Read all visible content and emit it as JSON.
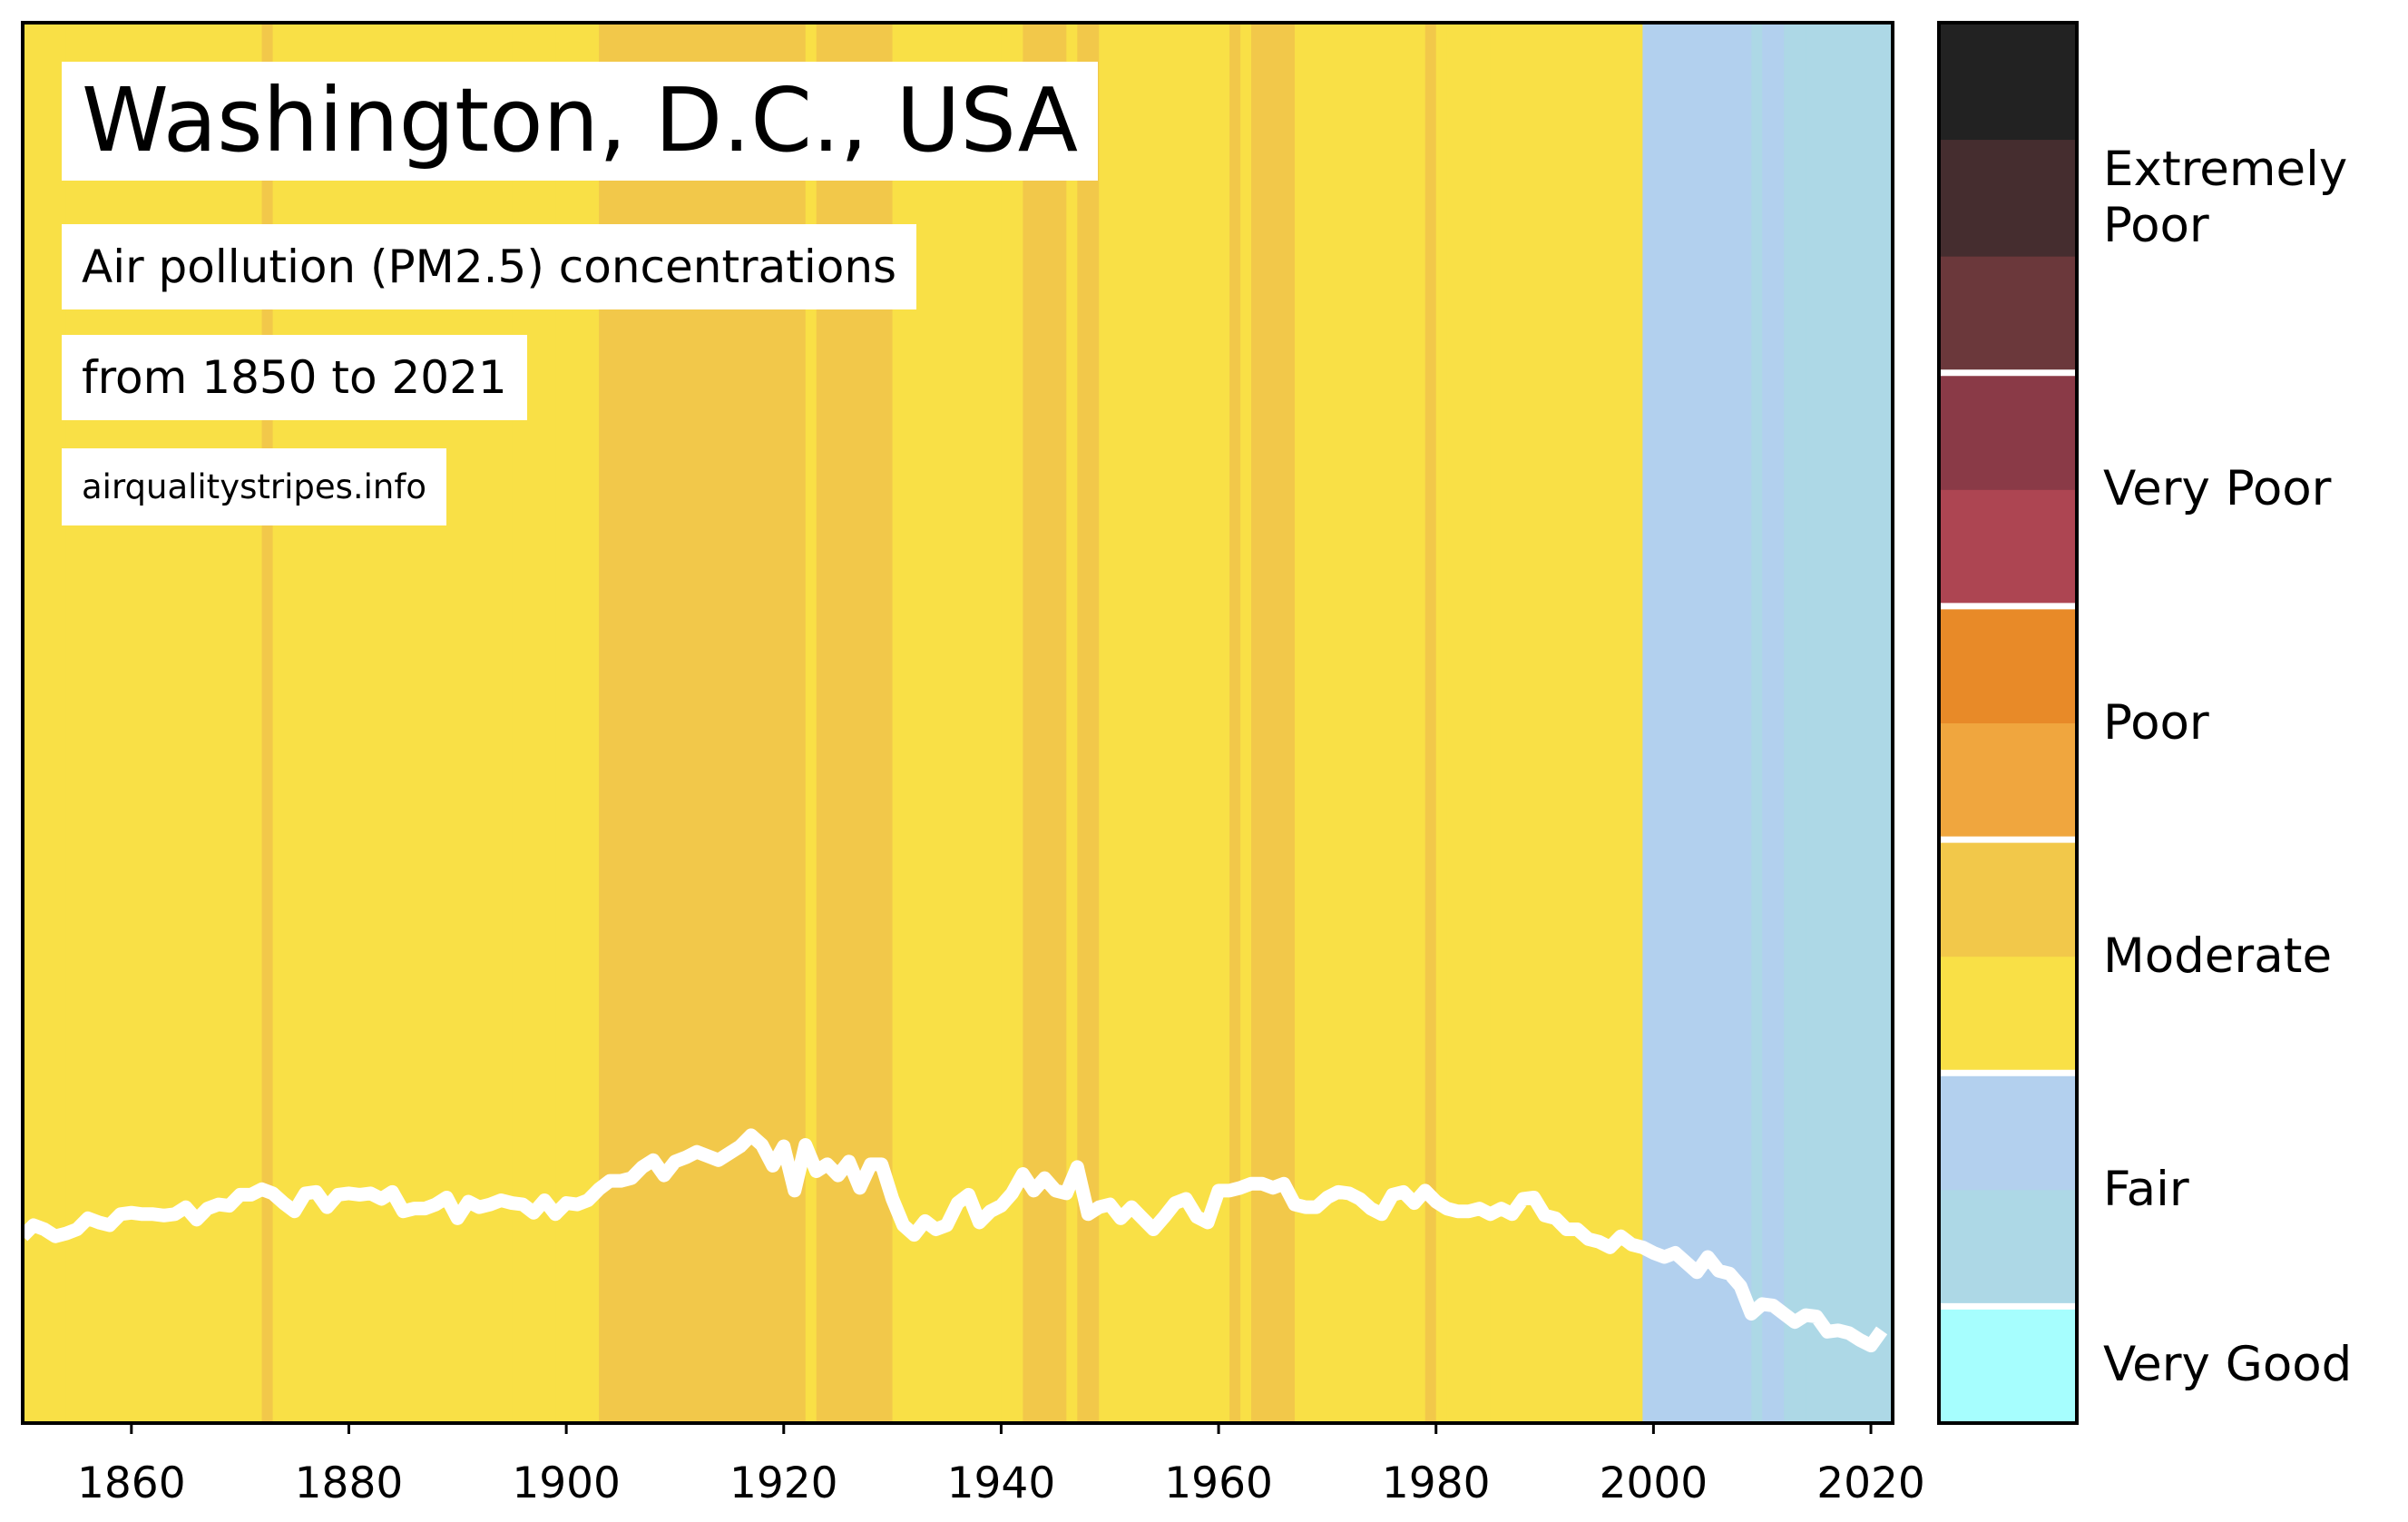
{
  "chart_data": {
    "type": "stripes",
    "title": "Washington, D.C., USA",
    "subtitle": [
      "Air pollution (PM2.5) concentrations",
      "from 1850 to 2021"
    ],
    "source": "airqualitystripes.info",
    "x": [
      1850,
      1851,
      1852,
      1853,
      1854,
      1855,
      1856,
      1857,
      1858,
      1859,
      1860,
      1861,
      1862,
      1863,
      1864,
      1865,
      1866,
      1867,
      1868,
      1869,
      1870,
      1871,
      1872,
      1873,
      1874,
      1875,
      1876,
      1877,
      1878,
      1879,
      1880,
      1881,
      1882,
      1883,
      1884,
      1885,
      1886,
      1887,
      1888,
      1889,
      1890,
      1891,
      1892,
      1893,
      1894,
      1895,
      1896,
      1897,
      1898,
      1899,
      1900,
      1901,
      1902,
      1903,
      1904,
      1905,
      1906,
      1907,
      1908,
      1909,
      1910,
      1911,
      1912,
      1913,
      1914,
      1915,
      1916,
      1917,
      1918,
      1919,
      1920,
      1921,
      1922,
      1923,
      1924,
      1925,
      1926,
      1927,
      1928,
      1929,
      1930,
      1931,
      1932,
      1933,
      1934,
      1935,
      1936,
      1937,
      1938,
      1939,
      1940,
      1941,
      1942,
      1943,
      1944,
      1945,
      1946,
      1947,
      1948,
      1949,
      1950,
      1951,
      1952,
      1953,
      1954,
      1955,
      1956,
      1957,
      1958,
      1959,
      1960,
      1961,
      1962,
      1963,
      1964,
      1965,
      1966,
      1967,
      1968,
      1969,
      1970,
      1971,
      1972,
      1973,
      1974,
      1975,
      1976,
      1977,
      1978,
      1979,
      1980,
      1981,
      1982,
      1983,
      1984,
      1985,
      1986,
      1987,
      1988,
      1989,
      1990,
      1991,
      1992,
      1993,
      1994,
      1995,
      1996,
      1997,
      1998,
      1999,
      2000,
      2001,
      2002,
      2003,
      2004,
      2005,
      2006,
      2007,
      2008,
      2009,
      2010,
      2011,
      2012,
      2013,
      2014,
      2015,
      2016,
      2017,
      2018,
      2019,
      2020,
      2021
    ],
    "values": [
      15.6,
      16.4,
      16.1,
      15.6,
      15.8,
      16.1,
      16.9,
      16.6,
      16.4,
      17.2,
      17.3,
      17.2,
      17.2,
      17.1,
      17.2,
      17.7,
      16.8,
      17.6,
      17.9,
      17.8,
      18.6,
      18.6,
      19.0,
      18.7,
      18.0,
      17.4,
      18.7,
      18.8,
      17.7,
      18.6,
      18.7,
      18.6,
      18.7,
      18.3,
      18.8,
      17.4,
      17.6,
      17.6,
      17.9,
      18.4,
      16.9,
      18.1,
      17.7,
      17.9,
      18.2,
      18.0,
      17.9,
      17.3,
      18.2,
      17.2,
      18.0,
      17.9,
      18.2,
      19.0,
      19.6,
      19.6,
      19.8,
      20.6,
      21.1,
      20.0,
      21.0,
      21.3,
      21.7,
      21.4,
      21.1,
      21.6,
      22.1,
      22.9,
      22.2,
      20.7,
      22.1,
      18.9,
      22.2,
      20.3,
      20.8,
      20.0,
      21.0,
      19.1,
      20.8,
      20.8,
      18.3,
      16.4,
      15.7,
      16.7,
      16.1,
      16.4,
      18.0,
      18.6,
      16.6,
      17.4,
      17.8,
      18.7,
      20.1,
      18.9,
      19.8,
      18.9,
      18.7,
      20.6,
      17.2,
      17.7,
      17.9,
      16.9,
      17.7,
      16.9,
      16.1,
      17.0,
      18.0,
      18.3,
      17.0,
      16.6,
      18.9,
      18.9,
      19.1,
      19.4,
      19.4,
      19.1,
      19.4,
      17.9,
      17.7,
      17.7,
      18.4,
      18.8,
      18.7,
      18.3,
      17.6,
      17.2,
      18.6,
      18.8,
      18.0,
      18.9,
      18.1,
      17.6,
      17.4,
      17.4,
      17.6,
      17.2,
      17.6,
      17.2,
      18.3,
      18.4,
      17.1,
      16.9,
      16.1,
      16.1,
      15.4,
      15.2,
      14.8,
      15.6,
      15.0,
      14.8,
      14.4,
      14.1,
      14.4,
      13.7,
      13.0,
      14.1,
      13.1,
      12.9,
      12.0,
      10.0,
      10.7,
      10.6,
      10.0,
      9.4,
      9.9,
      9.8,
      8.7,
      8.8,
      8.6,
      8.1,
      7.7,
      8.8
    ],
    "colors": [
      "#f9e046",
      "#f9e046",
      "#f9e046",
      "#f9e046",
      "#f9e046",
      "#f9e046",
      "#f9e046",
      "#f9e046",
      "#f9e046",
      "#f9e046",
      "#f9e046",
      "#f9e046",
      "#f9e046",
      "#f9e046",
      "#f9e046",
      "#f9e046",
      "#f9e046",
      "#f9e046",
      "#f9e046",
      "#f9e046",
      "#f9e046",
      "#f9e046",
      "#f2c84a",
      "#f9e046",
      "#f9e046",
      "#f9e046",
      "#f9e046",
      "#f9e046",
      "#f9e046",
      "#f9e046",
      "#f9e046",
      "#f9e046",
      "#f9e046",
      "#f9e046",
      "#f9e046",
      "#f9e046",
      "#f9e046",
      "#f9e046",
      "#f9e046",
      "#f9e046",
      "#f9e046",
      "#f9e046",
      "#f9e046",
      "#f9e046",
      "#f9e046",
      "#f9e046",
      "#f9e046",
      "#f9e046",
      "#f9e046",
      "#f9e046",
      "#f9e046",
      "#f9e046",
      "#f9e046",
      "#f2c84a",
      "#f2c84a",
      "#f2c84a",
      "#f2c84a",
      "#f2c84a",
      "#f2c84a",
      "#f2c84a",
      "#f2c84a",
      "#f2c84a",
      "#f2c84a",
      "#f2c84a",
      "#f2c84a",
      "#f2c84a",
      "#f2c84a",
      "#f2c84a",
      "#f2c84a",
      "#f2c84a",
      "#f2c84a",
      "#f2c84a",
      "#f9e046",
      "#f2c84a",
      "#f2c84a",
      "#f2c84a",
      "#f2c84a",
      "#f2c84a",
      "#f2c84a",
      "#f2c84a",
      "#f9e046",
      "#f9e046",
      "#f9e046",
      "#f9e046",
      "#f9e046",
      "#f9e046",
      "#f9e046",
      "#f9e046",
      "#f9e046",
      "#f9e046",
      "#f9e046",
      "#f9e046",
      "#f2c84a",
      "#f2c84a",
      "#f2c84a",
      "#f2c84a",
      "#f9e046",
      "#f2c84a",
      "#f2c84a",
      "#f9e046",
      "#f9e046",
      "#f9e046",
      "#f9e046",
      "#f9e046",
      "#f9e046",
      "#f9e046",
      "#f9e046",
      "#f9e046",
      "#f9e046",
      "#f9e046",
      "#f9e046",
      "#f2c84a",
      "#f9e046",
      "#f2c84a",
      "#f2c84a",
      "#f2c84a",
      "#f2c84a",
      "#f9e046",
      "#f9e046",
      "#f9e046",
      "#f9e046",
      "#f9e046",
      "#f9e046",
      "#f9e046",
      "#f9e046",
      "#f9e046",
      "#f9e046",
      "#f9e046",
      "#f9e046",
      "#f2c84a",
      "#f9e046",
      "#f9e046",
      "#f9e046",
      "#f9e046",
      "#f9e046",
      "#f9e046",
      "#f9e046",
      "#f9e046",
      "#f9e046",
      "#f9e046",
      "#f9e046",
      "#f9e046",
      "#f9e046",
      "#f9e046",
      "#f9e046",
      "#f9e046",
      "#f9e046",
      "#f9e046",
      "#f9e046",
      "#b2d0ee",
      "#b2d0ee",
      "#b2d0ee",
      "#b2d0ee",
      "#b2d0ee",
      "#b2d0ee",
      "#b2d0ee",
      "#b2d0ee",
      "#b2d0ee",
      "#b2d0ee",
      "#add8e6",
      "#b2d0ee",
      "#b2d0ee",
      "#add8e6",
      "#add8e6",
      "#add8e6",
      "#add8e6",
      "#add8e6",
      "#add8e6",
      "#add8e6",
      "#add8e6",
      "#add8e6",
      "#add8e6"
    ],
    "line_color": "#ffffff",
    "xlim": [
      1850,
      2022
    ],
    "xticks": [
      1860,
      1880,
      1900,
      1920,
      1940,
      1960,
      1980,
      2000,
      2020
    ],
    "ylim": [
      2.1,
      103.3
    ],
    "colorbar": {
      "categories": [
        "Very Good",
        "Fair",
        "Moderate",
        "Poor",
        "Very Poor",
        "Extremely Poor"
      ],
      "colors": [
        [
          "#a6fefe"
        ],
        [
          "#add8e6",
          "#b3d0ee"
        ],
        [
          "#f9e046",
          "#f2c84a"
        ],
        [
          "#f0a63e",
          "#e88a28"
        ],
        [
          "#ad4552",
          "#8a3a47"
        ],
        [
          "#6b383b",
          "#452d2f",
          "#222222"
        ]
      ]
    }
  }
}
